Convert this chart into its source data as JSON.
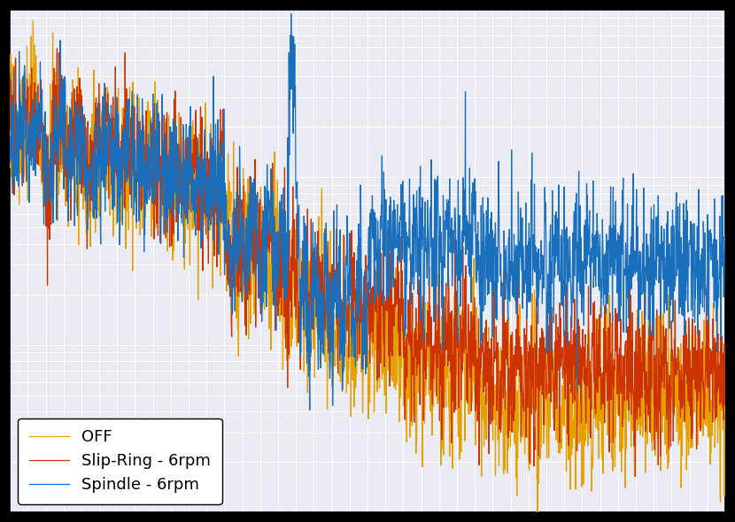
{
  "legend_labels": [
    "Spindle - 6rpm",
    "Slip-Ring - 6rpm",
    "OFF"
  ],
  "colors_line": [
    "#1a6fbd",
    "#cc3300",
    "#e5a000"
  ],
  "linewidth": 0.9,
  "background_color": "#eaeaf2",
  "legend_loc": "lower left",
  "xlim": [
    0,
    1
  ],
  "figsize": [
    8.3,
    5.9
  ],
  "dpi": 100,
  "tick_labelsize": 11,
  "legend_fontsize": 13
}
